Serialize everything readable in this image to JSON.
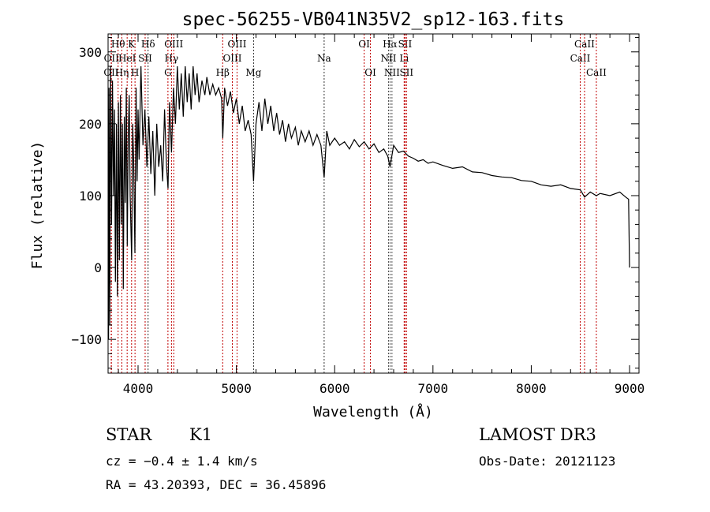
{
  "chart_data": {
    "type": "line",
    "title": "spec-56255-VB041N35V2_sp12-163.fits",
    "xlabel": "Wavelength (Å)",
    "ylabel": "Flux (relative)",
    "xlim": [
      3695,
      9096
    ],
    "ylim": [
      -147,
      325
    ],
    "xticks": [
      4000,
      5000,
      6000,
      7000,
      8000,
      9000
    ],
    "yticks": [
      -100,
      0,
      100,
      200,
      300
    ],
    "grid": false,
    "series": [
      {
        "name": "spectrum",
        "points": [
          [
            3700,
            -100
          ],
          [
            3705,
            250
          ],
          [
            3712,
            -80
          ],
          [
            3720,
            280
          ],
          [
            3730,
            60
          ],
          [
            3740,
            260
          ],
          [
            3750,
            100
          ],
          [
            3760,
            220
          ],
          [
            3770,
            -20
          ],
          [
            3780,
            200
          ],
          [
            3790,
            -40
          ],
          [
            3800,
            230
          ],
          [
            3810,
            10
          ],
          [
            3820,
            240
          ],
          [
            3830,
            60
          ],
          [
            3840,
            200
          ],
          [
            3850,
            -30
          ],
          [
            3860,
            210
          ],
          [
            3870,
            90
          ],
          [
            3880,
            250
          ],
          [
            3890,
            30
          ],
          [
            3900,
            180
          ],
          [
            3910,
            240
          ],
          [
            3920,
            100
          ],
          [
            3935,
            10
          ],
          [
            3945,
            200
          ],
          [
            3955,
            150
          ],
          [
            3968,
            20
          ],
          [
            3980,
            250
          ],
          [
            3990,
            120
          ],
          [
            4000,
            220
          ],
          [
            4010,
            150
          ],
          [
            4030,
            280
          ],
          [
            4050,
            170
          ],
          [
            4070,
            220
          ],
          [
            4090,
            140
          ],
          [
            4110,
            210
          ],
          [
            4130,
            130
          ],
          [
            4150,
            190
          ],
          [
            4170,
            100
          ],
          [
            4190,
            200
          ],
          [
            4210,
            140
          ],
          [
            4230,
            170
          ],
          [
            4250,
            120
          ],
          [
            4270,
            220
          ],
          [
            4290,
            140
          ],
          [
            4305,
            110
          ],
          [
            4320,
            230
          ],
          [
            4340,
            160
          ],
          [
            4360,
            250
          ],
          [
            4380,
            200
          ],
          [
            4400,
            280
          ],
          [
            4420,
            220
          ],
          [
            4440,
            270
          ],
          [
            4460,
            210
          ],
          [
            4480,
            280
          ],
          [
            4500,
            230
          ],
          [
            4520,
            270
          ],
          [
            4540,
            220
          ],
          [
            4560,
            280
          ],
          [
            4580,
            240
          ],
          [
            4600,
            270
          ],
          [
            4620,
            230
          ],
          [
            4650,
            260
          ],
          [
            4680,
            240
          ],
          [
            4700,
            265
          ],
          [
            4730,
            240
          ],
          [
            4760,
            255
          ],
          [
            4790,
            240
          ],
          [
            4820,
            250
          ],
          [
            4850,
            235
          ],
          [
            4862,
            180
          ],
          [
            4880,
            250
          ],
          [
            4910,
            225
          ],
          [
            4940,
            245
          ],
          [
            4970,
            215
          ],
          [
            5000,
            235
          ],
          [
            5030,
            200
          ],
          [
            5060,
            225
          ],
          [
            5090,
            190
          ],
          [
            5120,
            205
          ],
          [
            5150,
            185
          ],
          [
            5175,
            120
          ],
          [
            5200,
            200
          ],
          [
            5230,
            230
          ],
          [
            5260,
            190
          ],
          [
            5290,
            235
          ],
          [
            5320,
            200
          ],
          [
            5350,
            225
          ],
          [
            5380,
            190
          ],
          [
            5410,
            215
          ],
          [
            5440,
            185
          ],
          [
            5470,
            205
          ],
          [
            5500,
            175
          ],
          [
            5530,
            200
          ],
          [
            5560,
            180
          ],
          [
            5600,
            195
          ],
          [
            5630,
            170
          ],
          [
            5660,
            190
          ],
          [
            5700,
            175
          ],
          [
            5740,
            190
          ],
          [
            5780,
            170
          ],
          [
            5820,
            185
          ],
          [
            5860,
            170
          ],
          [
            5893,
            125
          ],
          [
            5920,
            190
          ],
          [
            5950,
            170
          ],
          [
            6000,
            180
          ],
          [
            6050,
            170
          ],
          [
            6100,
            175
          ],
          [
            6150,
            165
          ],
          [
            6200,
            178
          ],
          [
            6250,
            168
          ],
          [
            6300,
            175
          ],
          [
            6350,
            165
          ],
          [
            6400,
            172
          ],
          [
            6450,
            160
          ],
          [
            6500,
            165
          ],
          [
            6540,
            155
          ],
          [
            6563,
            140
          ],
          [
            6600,
            170
          ],
          [
            6650,
            160
          ],
          [
            6700,
            162
          ],
          [
            6750,
            155
          ],
          [
            6800,
            152
          ],
          [
            6850,
            148
          ],
          [
            6900,
            150
          ],
          [
            6950,
            145
          ],
          [
            7000,
            147
          ],
          [
            7100,
            142
          ],
          [
            7200,
            138
          ],
          [
            7300,
            140
          ],
          [
            7400,
            133
          ],
          [
            7500,
            132
          ],
          [
            7600,
            128
          ],
          [
            7700,
            126
          ],
          [
            7800,
            125
          ],
          [
            7900,
            121
          ],
          [
            8000,
            120
          ],
          [
            8100,
            115
          ],
          [
            8200,
            113
          ],
          [
            8300,
            115
          ],
          [
            8400,
            110
          ],
          [
            8500,
            108
          ],
          [
            8542,
            98
          ],
          [
            8600,
            105
          ],
          [
            8662,
            100
          ],
          [
            8700,
            103
          ],
          [
            8800,
            100
          ],
          [
            8900,
            105
          ],
          [
            8960,
            98
          ],
          [
            8990,
            95
          ],
          [
            9000,
            0
          ]
        ]
      }
    ],
    "lines": [
      {
        "wl": 3727,
        "label": "OII",
        "row": 3,
        "color": "#c00000"
      },
      {
        "wl": 3729,
        "label": "OII",
        "row": 2,
        "color": "#c00000"
      },
      {
        "wl": 3797,
        "label": "Hθ",
        "row": 1,
        "color": "#c00000"
      },
      {
        "wl": 3835,
        "label": "Hη",
        "row": 3,
        "color": "#c00000"
      },
      {
        "wl": 3889,
        "label": "HeI",
        "row": 2,
        "color": "#c00000"
      },
      {
        "wl": 3934,
        "label": "K",
        "row": 1,
        "color": "#c00000"
      },
      {
        "wl": 3969,
        "label": "H",
        "row": 3,
        "color": "#c00000"
      },
      {
        "wl": 4072,
        "label": "SII",
        "row": 2,
        "color": "#c00000"
      },
      {
        "wl": 4102,
        "label": "Hδ",
        "row": 1,
        "color": "#333333"
      },
      {
        "wl": 4304,
        "label": "G",
        "row": 3,
        "color": "#c00000"
      },
      {
        "wl": 4340,
        "label": "Hγ",
        "row": 2,
        "color": "#c00000"
      },
      {
        "wl": 4363,
        "label": "OIII",
        "row": 1,
        "color": "#c00000"
      },
      {
        "wl": 4861,
        "label": "Hβ",
        "row": 3,
        "color": "#c00000"
      },
      {
        "wl": 4959,
        "label": "OIII",
        "row": 2,
        "color": "#c00000"
      },
      {
        "wl": 5007,
        "label": "OIII",
        "row": 1,
        "color": "#c00000"
      },
      {
        "wl": 5175,
        "label": "Mg",
        "row": 3,
        "color": "#333333"
      },
      {
        "wl": 5893,
        "label": "Na",
        "row": 2,
        "color": "#333333"
      },
      {
        "wl": 6300,
        "label": "OI",
        "row": 1,
        "color": "#c00000"
      },
      {
        "wl": 6364,
        "label": "OI",
        "row": 3,
        "color": "#c00000"
      },
      {
        "wl": 6548,
        "label": "NII",
        "row": 2,
        "color": "#555555"
      },
      {
        "wl": 6563,
        "label": "Hα",
        "row": 1,
        "color": "#555555"
      },
      {
        "wl": 6583,
        "label": "NII",
        "row": 3,
        "color": "#555555"
      },
      {
        "wl": 6707,
        "label": "Li",
        "row": 2,
        "color": "#c00000"
      },
      {
        "wl": 6716,
        "label": "SII",
        "row": 1,
        "color": "#c00000"
      },
      {
        "wl": 6731,
        "label": "SII",
        "row": 3,
        "color": "#c00000"
      },
      {
        "wl": 8498,
        "label": "CaII",
        "row": 2,
        "color": "#c00000"
      },
      {
        "wl": 8542,
        "label": "CaII",
        "row": 1,
        "color": "#c00000"
      },
      {
        "wl": 8662,
        "label": "CaII",
        "row": 3,
        "color": "#c00000"
      }
    ]
  },
  "info": {
    "class": "STAR",
    "subclass": "K1",
    "survey": "LAMOST DR3",
    "cz": "cz = −0.4 ± 1.4 km/s",
    "obs_date": "Obs-Date: 20121123",
    "coords": "RA =  43.20393, DEC =  36.45896"
  }
}
